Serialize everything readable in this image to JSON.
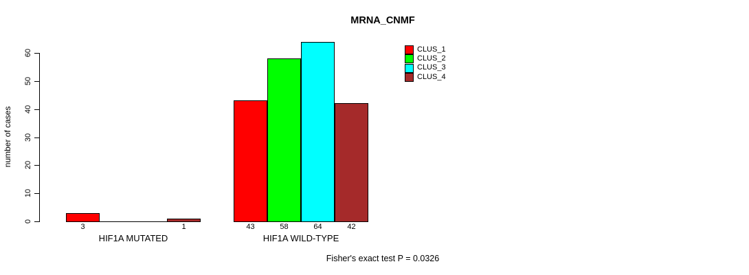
{
  "chart_data": {
    "type": "bar",
    "title": "MRNA_CNMF",
    "ylabel": "number of cases",
    "xlabel": "",
    "ylim": [
      0,
      60
    ],
    "yticks": [
      0,
      10,
      20,
      30,
      40,
      50,
      60
    ],
    "grid": false,
    "legend_position": "top-right",
    "series": [
      {
        "name": "CLUS_1",
        "color": "#FF0000"
      },
      {
        "name": "CLUS_2",
        "color": "#00FF00"
      },
      {
        "name": "CLUS_3",
        "color": "#00FFFF"
      },
      {
        "name": "CLUS_4",
        "color": "#A52A2A"
      }
    ],
    "groups": [
      {
        "label": "HIF1A MUTATED",
        "values": [
          3,
          0,
          0,
          1
        ],
        "bar_labels": [
          "3",
          "",
          "",
          "1"
        ]
      },
      {
        "label": "HIF1A WILD-TYPE",
        "values": [
          43,
          58,
          64,
          42
        ],
        "bar_labels": [
          "43",
          "58",
          "64",
          "42"
        ]
      }
    ],
    "annotation": "Fisher's exact test P = 0.0326"
  }
}
